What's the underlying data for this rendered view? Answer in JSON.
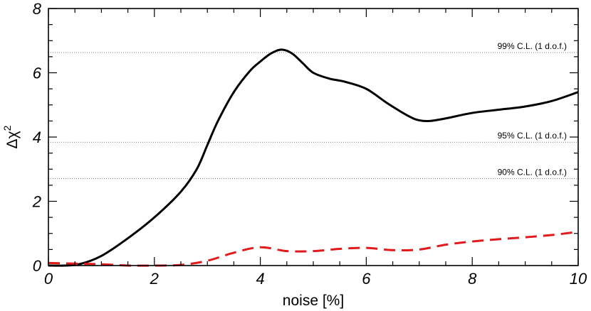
{
  "chart_data": {
    "type": "line",
    "title": "",
    "xlabel": "noise [%]",
    "ylabel_parts": {
      "base": "Δχ",
      "sup": "2"
    },
    "xlim": [
      0,
      10
    ],
    "ylim": [
      0,
      8
    ],
    "x_ticks": [
      0,
      2,
      4,
      6,
      8,
      10
    ],
    "y_ticks": [
      0,
      2,
      4,
      6,
      8
    ],
    "x_minor_step": 0.5,
    "y_minor_step": 0.5,
    "grid": false,
    "legend": "none",
    "reference_lines": [
      {
        "label": "99% C.L. (1 d.o.f.)",
        "y": 6.63
      },
      {
        "label": "95% C.L. (1 d.o.f.)",
        "y": 3.84
      },
      {
        "label": "90% C.L. (1 d.o.f.)",
        "y": 2.71
      }
    ],
    "series": [
      {
        "color": "#000000",
        "dash": "solid",
        "x": [
          0,
          0.3,
          0.6,
          1.0,
          1.5,
          2.0,
          2.5,
          2.8,
          3.0,
          3.2,
          3.5,
          3.8,
          4.0,
          4.2,
          4.4,
          4.6,
          4.8,
          5.0,
          5.3,
          5.6,
          6.0,
          6.4,
          6.8,
          7.0,
          7.2,
          7.5,
          8.0,
          8.5,
          9.0,
          9.5,
          10.0
        ],
        "y": [
          0.0,
          0.0,
          0.05,
          0.3,
          0.85,
          1.5,
          2.3,
          3.0,
          3.75,
          4.5,
          5.4,
          6.05,
          6.35,
          6.6,
          6.72,
          6.6,
          6.3,
          6.0,
          5.82,
          5.72,
          5.5,
          5.05,
          4.65,
          4.52,
          4.5,
          4.58,
          4.75,
          4.85,
          4.95,
          5.12,
          5.4
        ]
      },
      {
        "color": "#e31a1c",
        "dash": "dashed",
        "x": [
          0,
          0.5,
          1.0,
          1.5,
          2.0,
          2.5,
          3.0,
          3.5,
          4.0,
          4.5,
          5.0,
          5.5,
          6.0,
          6.5,
          7.0,
          7.5,
          8.0,
          8.5,
          9.0,
          9.5,
          10.0
        ],
        "y": [
          0.08,
          0.06,
          0.04,
          0.0,
          0.0,
          0.02,
          0.15,
          0.4,
          0.57,
          0.45,
          0.45,
          0.52,
          0.55,
          0.48,
          0.5,
          0.65,
          0.75,
          0.82,
          0.88,
          0.95,
          1.05
        ]
      }
    ]
  }
}
